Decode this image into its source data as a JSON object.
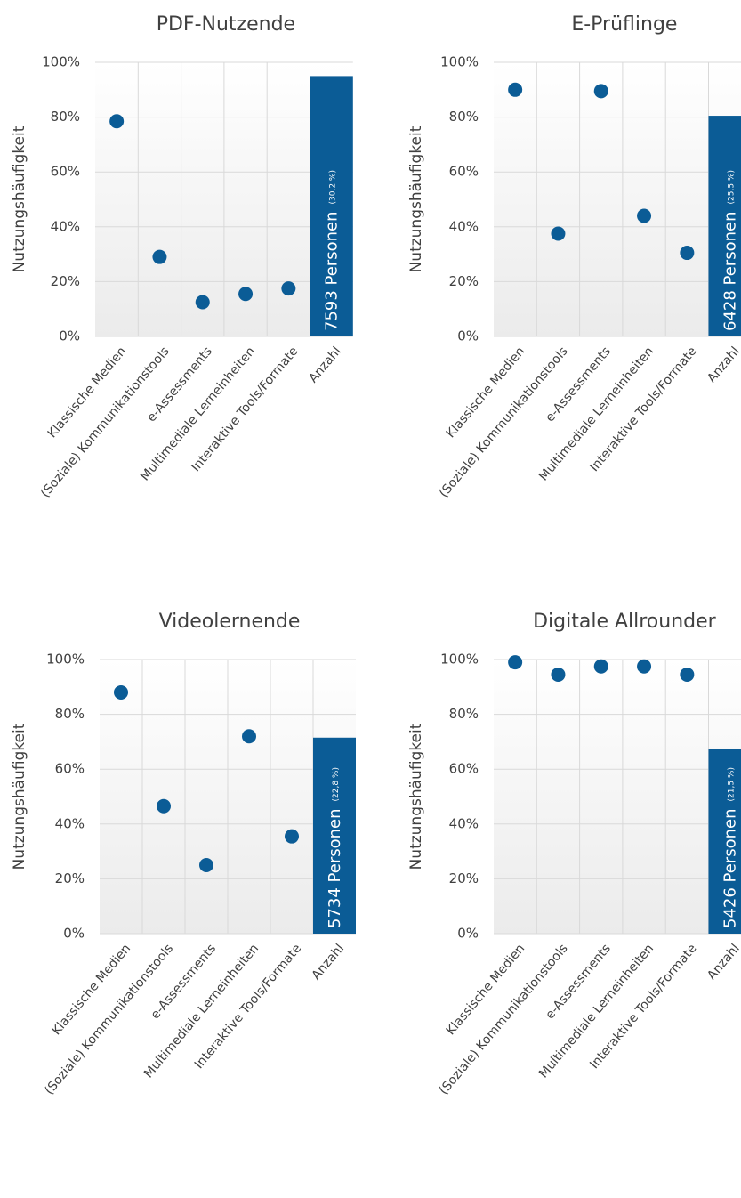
{
  "chart_data": [
    {
      "type": "dotbar",
      "title": "PDF-Nutzende",
      "y_label": "Nutzungshäufigkeit",
      "categories": [
        "Klassische Medien",
        "(Soziale) Kommunikationstools",
        "e-Assessments",
        "Multimediale Lerneinheiten",
        "Interaktive Tools/Formate",
        "Anzahl"
      ],
      "values": [
        78.5,
        29,
        12.5,
        15.5,
        17.5,
        95
      ],
      "marks": [
        "dot",
        "dot",
        "dot",
        "dot",
        "dot",
        "bar"
      ],
      "bar_label": "7593 Personen",
      "bar_note": "(30,2 %)",
      "color": "#0b5c96",
      "ylim": [
        0,
        100
      ],
      "yticks": [
        {
          "value": 0,
          "label": "0%"
        },
        {
          "value": 20,
          "label": "20%"
        },
        {
          "value": 40,
          "label": "40%"
        },
        {
          "value": 60,
          "label": "60%"
        },
        {
          "value": 80,
          "label": "80%"
        },
        {
          "value": 100,
          "label": "100%"
        }
      ],
      "grid": true
    },
    {
      "type": "dotbar",
      "title": "E-Prüflinge",
      "y_label": "Nutzungshäufigkeit",
      "categories": [
        "Klassische Medien",
        "(Soziale) Kommunikationstools",
        "e-Assessments",
        "Multimediale Lerneinheiten",
        "Interaktive Tools/Formate",
        "Anzahl"
      ],
      "values": [
        90,
        37.5,
        89.5,
        44,
        30.5,
        80.5
      ],
      "marks": [
        "dot",
        "dot",
        "dot",
        "dot",
        "dot",
        "bar"
      ],
      "bar_label": "6428 Personen",
      "bar_note": "(25,5 %)",
      "color": "#0b5c96",
      "ylim": [
        0,
        100
      ],
      "yticks": [
        {
          "value": 0,
          "label": "0%"
        },
        {
          "value": 20,
          "label": "20%"
        },
        {
          "value": 40,
          "label": "40%"
        },
        {
          "value": 60,
          "label": "60%"
        },
        {
          "value": 80,
          "label": "80%"
        },
        {
          "value": 100,
          "label": "100%"
        }
      ],
      "grid": true
    },
    {
      "type": "dotbar",
      "title": "Videolernende",
      "y_label": "Nutzungshäufigkeit",
      "categories": [
        "Klassische Medien",
        "(Soziale) Kommunikationstools",
        "e-Assessments",
        "Multimediale Lerneinheiten",
        "Interaktive Tools/Formate",
        "Anzahl"
      ],
      "values": [
        88,
        46.5,
        25,
        72,
        35.5,
        71.5
      ],
      "marks": [
        "dot",
        "dot",
        "dot",
        "dot",
        "dot",
        "bar"
      ],
      "bar_label": "5734 Personen",
      "bar_note": "(22,8 %)",
      "color": "#0b5c96",
      "ylim": [
        0,
        100
      ],
      "yticks": [
        {
          "value": 0,
          "label": "0%"
        },
        {
          "value": 20,
          "label": "20%"
        },
        {
          "value": 40,
          "label": "40%"
        },
        {
          "value": 60,
          "label": "60%"
        },
        {
          "value": 80,
          "label": "80%"
        },
        {
          "value": 100,
          "label": "100%"
        }
      ],
      "grid": true
    },
    {
      "type": "dotbar",
      "title": "Digitale Allrounder",
      "y_label": "Nutzungshäufigkeit",
      "categories": [
        "Klassische Medien",
        "(Soziale) Kommunikationstools",
        "e-Assessments",
        "Multimediale Lerneinheiten",
        "Interaktive Tools/Formate",
        "Anzahl"
      ],
      "values": [
        99,
        94.5,
        97.5,
        97.5,
        94.5,
        67.5
      ],
      "marks": [
        "dot",
        "dot",
        "dot",
        "dot",
        "dot",
        "bar"
      ],
      "bar_label": "5426 Personen",
      "bar_note": "(21,5 %)",
      "color": "#0b5c96",
      "ylim": [
        0,
        100
      ],
      "yticks": [
        {
          "value": 0,
          "label": "0%"
        },
        {
          "value": 20,
          "label": "20%"
        },
        {
          "value": 40,
          "label": "40%"
        },
        {
          "value": 60,
          "label": "60%"
        },
        {
          "value": 80,
          "label": "80%"
        },
        {
          "value": 100,
          "label": "100%"
        }
      ],
      "grid": true
    }
  ]
}
